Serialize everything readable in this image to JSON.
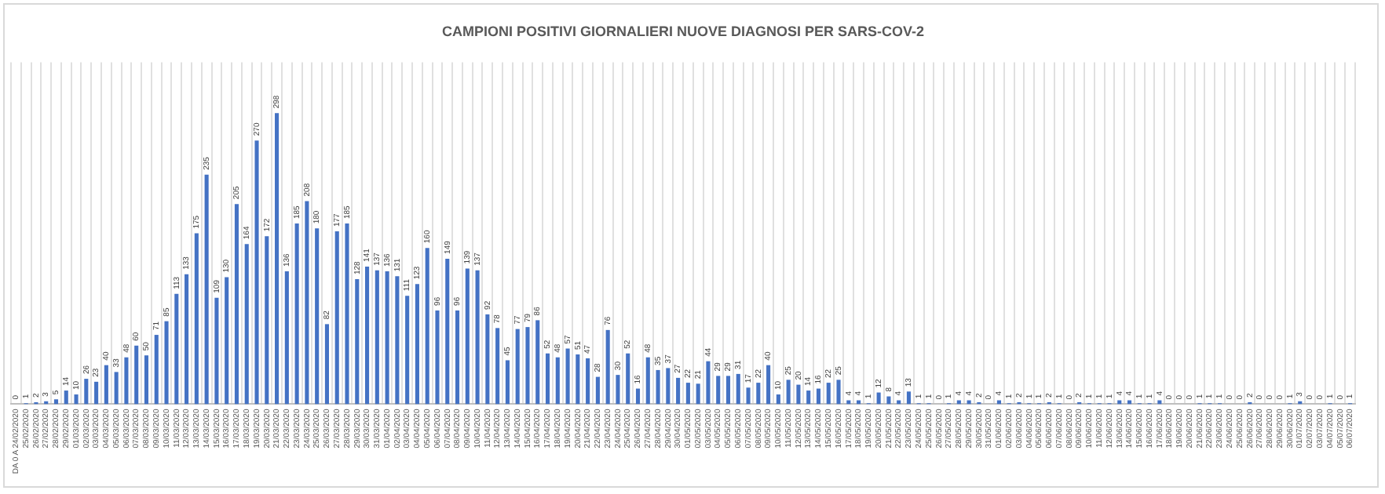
{
  "chart_data": {
    "type": "bar",
    "title": "CAMPIONI POSITIVI GIORNALIERI NUOVE DIAGNOSI PER SARS-COV-2",
    "categories": [
      "DA 0 A 24/02/2020",
      "25/02/2020",
      "26/02/2020",
      "27/02/2020",
      "28/02/2020",
      "29/02/2020",
      "01/03/2020",
      "02/03/2020",
      "03/03/2020",
      "04/03/2020",
      "05/03/2020",
      "06/03/2020",
      "07/03/2020",
      "08/03/2020",
      "09/03/2020",
      "10/03/2020",
      "11/03/2020",
      "12/03/2020",
      "13/03/2020",
      "14/03/2020",
      "15/03/2020",
      "16/03/2020",
      "17/03/2020",
      "18/03/2020",
      "19/03/2020",
      "20/03/2020",
      "21/03/2020",
      "22/03/2020",
      "23/03/2020",
      "24/03/2020",
      "25/03/2020",
      "26/03/2020",
      "27/03/2020",
      "28/03/2020",
      "29/03/2020",
      "30/03/2020",
      "31/03/2020",
      "01/04/2020",
      "02/04/2020",
      "03/04/2020",
      "04/04/2020",
      "05/04/2020",
      "06/04/2020",
      "07/04/2020",
      "08/04/2020",
      "09/04/2020",
      "10/04/2020",
      "11/04/2020",
      "12/04/2020",
      "13/04/2020",
      "14/04/2020",
      "15/04/2020",
      "16/04/2020",
      "17/04/2020",
      "18/04/2020",
      "19/04/2020",
      "20/04/2020",
      "21/04/2020",
      "22/04/2020",
      "23/04/2020",
      "24/04/2020",
      "25/04/2020",
      "26/04/2020",
      "27/04/2020",
      "28/04/2020",
      "29/04/2020",
      "30/04/2020",
      "01/05/2020",
      "02/05/2020",
      "03/05/2020",
      "04/05/2020",
      "05/05/2020",
      "06/05/2020",
      "07/05/2020",
      "08/05/2020",
      "09/05/2020",
      "10/05/2020",
      "11/05/2020",
      "12/05/2020",
      "13/05/2020",
      "14/05/2020",
      "15/05/2020",
      "16/05/2020",
      "17/05/2020",
      "18/05/2020",
      "19/05/2020",
      "20/05/2020",
      "21/05/2020",
      "22/05/2020",
      "23/05/2020",
      "24/05/2020",
      "25/05/2020",
      "26/05/2020",
      "27/05/2020",
      "28/05/2020",
      "29/05/2020",
      "30/05/2020",
      "31/05/2020",
      "01/06/2020",
      "02/06/2020",
      "03/06/2020",
      "04/06/2020",
      "05/06/2020",
      "06/06/2020",
      "07/06/2020",
      "08/06/2020",
      "09/06/2020",
      "10/06/2020",
      "11/06/2020",
      "12/06/2020",
      "13/06/2020",
      "14/06/2020",
      "15/06/2020",
      "16/06/2020",
      "17/06/2020",
      "18/06/2020",
      "19/06/2020",
      "20/06/2020",
      "21/06/2020",
      "22/06/2020",
      "23/06/2020",
      "24/06/2020",
      "25/06/2020",
      "26/06/2020",
      "27/06/2020",
      "28/06/2020",
      "29/06/2020",
      "30/06/2020",
      "01/07/2020",
      "02/07/2020",
      "03/07/2020",
      "04/07/2020",
      "05/07/2020",
      "06/07/2020"
    ],
    "values": [
      0,
      1,
      2,
      3,
      5,
      14,
      10,
      26,
      23,
      40,
      33,
      48,
      60,
      50,
      71,
      85,
      113,
      133,
      175,
      235,
      109,
      130,
      205,
      164,
      270,
      172,
      298,
      136,
      185,
      208,
      180,
      82,
      177,
      185,
      128,
      141,
      137,
      136,
      131,
      111,
      123,
      160,
      96,
      149,
      96,
      139,
      137,
      92,
      78,
      45,
      77,
      79,
      86,
      52,
      48,
      57,
      51,
      47,
      28,
      76,
      30,
      52,
      16,
      48,
      35,
      37,
      27,
      22,
      21,
      44,
      29,
      29,
      31,
      17,
      22,
      40,
      10,
      25,
      20,
      14,
      16,
      22,
      25,
      4,
      4,
      1,
      12,
      8,
      4,
      13,
      1,
      1,
      0,
      1,
      4,
      4,
      2,
      0,
      4,
      1,
      2,
      1,
      1,
      2,
      1,
      0,
      2,
      1,
      1,
      1,
      4,
      4,
      1,
      1,
      4,
      0,
      0,
      0,
      1,
      1,
      1,
      0,
      0,
      2,
      0,
      0,
      0,
      1,
      3,
      0,
      0,
      1,
      0,
      1
    ],
    "color": "#4472c4",
    "data_labels": true,
    "grid": "x",
    "tick_labels": "x",
    "legend": false
  }
}
